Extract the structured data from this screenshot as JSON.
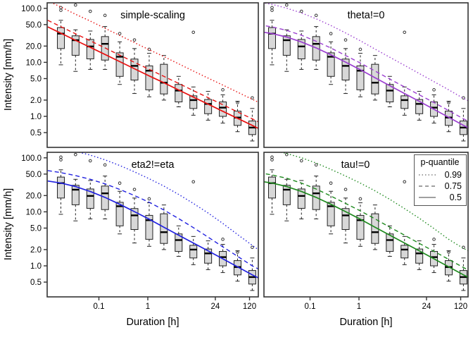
{
  "chart_data": {
    "type": "boxplot+line",
    "xlabel": "Duration [h]",
    "ylabel": "Intensity [mm/h]",
    "x_scale": "log",
    "y_scale": "log",
    "xlim_left_col": [
      0.00875,
      181
    ],
    "xlim_right_col": [
      0.0114,
      170
    ],
    "ylim": [
      0.26,
      127
    ],
    "x_ticks": {
      "values": [
        0.1,
        1,
        24,
        120
      ],
      "labels": [
        "0.1",
        "1",
        "24",
        "120"
      ]
    },
    "y_ticks": {
      "values": [
        100,
        50,
        20,
        10,
        5,
        2,
        1,
        0.5
      ],
      "labels": [
        "100.0",
        "50.0",
        "20.0",
        "10.0",
        "5.0",
        "2.0",
        "1.0",
        "0.5"
      ]
    },
    "box_durations_h": [
      0.0167,
      0.0333,
      0.0667,
      0.1333,
      0.2667,
      0.5333,
      1.067,
      2.133,
      4.267,
      8.533,
      17.07,
      34.13,
      68.27,
      136.5
    ],
    "boxplots": {
      "median": [
        34,
        25.7,
        19.7,
        22,
        12.7,
        8.6,
        7.0,
        4.2,
        3.0,
        2.0,
        1.7,
        1.45,
        0.95,
        0.62
      ],
      "q1": [
        18,
        13.5,
        11.6,
        11,
        5.5,
        4.7,
        3.1,
        2.6,
        1.85,
        1.4,
        1.12,
        1.0,
        0.68,
        0.46
      ],
      "q3": [
        44,
        31,
        26.5,
        30,
        15,
        11.5,
        8.6,
        9.2,
        3.9,
        2.4,
        2.05,
        1.85,
        1.25,
        0.82
      ],
      "whisker_low": [
        9,
        6.8,
        7.4,
        7.4,
        3.9,
        2.65,
        2.3,
        2.0,
        1.5,
        1.05,
        0.85,
        0.75,
        0.52,
        0.35
      ],
      "whisker_high": [
        60,
        40,
        38,
        46,
        24,
        18,
        14.7,
        13.4,
        5.5,
        3.5,
        2.9,
        2.5,
        1.9,
        1.4
      ],
      "outliers": {
        "0": [
          92,
          103
        ],
        "1": [
          115
        ],
        "2": [
          88
        ],
        "3": [
          74
        ],
        "4": [
          34
        ],
        "5": [
          26
        ],
        "6": [
          17.4
        ],
        "9": [
          36
        ],
        "11": [
          3.1
        ],
        "12": [
          1.8
        ],
        "13": [
          2.2
        ]
      },
      "fill": "#d8d8d8",
      "stroke": "#222222"
    },
    "curve_durations_h": [
      0.009,
      0.017,
      0.033,
      0.067,
      0.133,
      0.267,
      0.533,
      1.07,
      2.13,
      4.27,
      8.53,
      17.1,
      34.1,
      68.3,
      136.5,
      181
    ],
    "panels": [
      {
        "title": "simple-scaling",
        "color": "#e81212",
        "q50": [
          45.4,
          34.4,
          25.7,
          18.9,
          14.0,
          10.3,
          7.6,
          5.6,
          4.2,
          3.08,
          2.27,
          1.68,
          1.24,
          0.92,
          0.68,
          0.6
        ],
        "q75": [
          60,
          45.4,
          33.9,
          25,
          18.5,
          13.6,
          10.0,
          7.4,
          5.5,
          4.07,
          3.0,
          2.22,
          1.64,
          1.21,
          0.9,
          0.79
        ],
        "q99": [
          138,
          105,
          78,
          58,
          42.7,
          31.4,
          23.2,
          17.1,
          12.8,
          9.4,
          6.9,
          5.1,
          3.8,
          2.8,
          2.07,
          1.83
        ]
      },
      {
        "title": "theta!=0",
        "color": "#9b3fd0",
        "q50": [
          37.2,
          34,
          29.4,
          23.8,
          18.5,
          13.8,
          10.1,
          7.3,
          5.2,
          3.7,
          2.65,
          1.89,
          1.35,
          0.96,
          0.68,
          0.6
        ],
        "q75": [
          49.5,
          45.2,
          39.1,
          31.7,
          24.6,
          18.4,
          13.4,
          9.7,
          6.9,
          4.9,
          3.5,
          2.5,
          1.8,
          1.28,
          0.9,
          0.8
        ],
        "q99": [
          130,
          118,
          101,
          82,
          64,
          48,
          35,
          25,
          17.6,
          12.4,
          8.8,
          6.2,
          4.4,
          3.1,
          2.15,
          1.9
        ]
      },
      {
        "title": "eta2!=eta",
        "color": "#2222e0",
        "q50": [
          37.2,
          34,
          29.4,
          23.8,
          18.5,
          13.8,
          10.1,
          7.3,
          5.2,
          3.7,
          2.65,
          1.89,
          1.35,
          0.96,
          0.68,
          0.6
        ],
        "q75": [
          58,
          53,
          47,
          40,
          33,
          26,
          20,
          15,
          10.8,
          7.5,
          5.1,
          3.4,
          2.25,
          1.5,
          1.0,
          0.88
        ],
        "q99": [
          160,
          148,
          132,
          112,
          92,
          72,
          55,
          41,
          30,
          21,
          14.3,
          9.5,
          6.1,
          3.8,
          2.4,
          2.0
        ]
      },
      {
        "title": "tau!=0",
        "color": "#1f8a1f",
        "q50": [
          37.2,
          34,
          29.4,
          23.8,
          18.5,
          13.8,
          10.1,
          7.3,
          5.2,
          3.7,
          2.65,
          1.89,
          1.35,
          0.96,
          0.68,
          0.6
        ],
        "q75": [
          53,
          48,
          42,
          34,
          26.5,
          19.6,
          14.3,
          10.4,
          7.4,
          5.2,
          3.7,
          2.6,
          1.86,
          1.32,
          0.93,
          0.82
        ],
        "q99": [
          150,
          138,
          120,
          100,
          80,
          61,
          46,
          34,
          24.5,
          17,
          11.5,
          7.6,
          4.9,
          3.1,
          2.1,
          1.85
        ]
      }
    ],
    "legend": {
      "title": "p-quantile",
      "entries": [
        {
          "label": "0.99",
          "style": "dotted"
        },
        {
          "label": "0.75",
          "style": "dashed"
        },
        {
          "label": "0.5",
          "style": "solid"
        }
      ],
      "line_color": "#808080",
      "position": "top-right of tau!=0 panel"
    },
    "grid": false
  }
}
